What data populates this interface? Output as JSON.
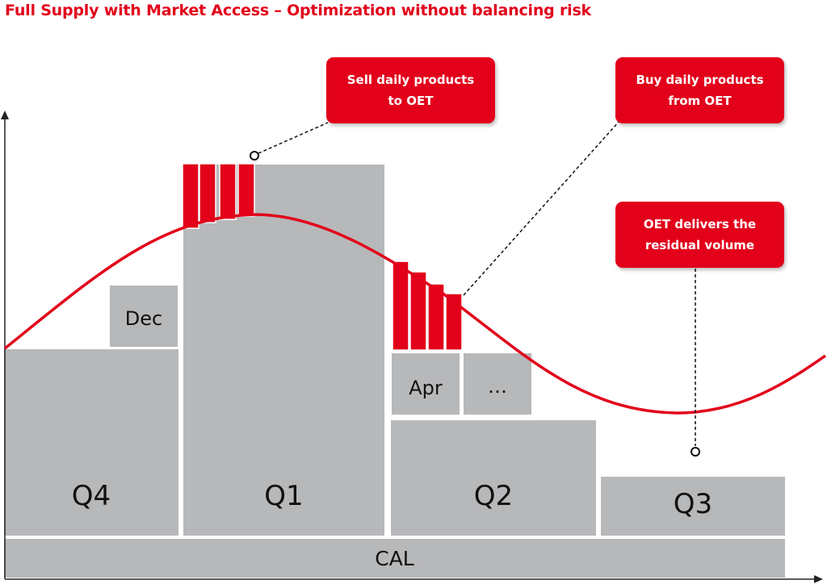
{
  "title": "Full Supply with Market Access – Optimization without balancing risk",
  "callouts": {
    "sell": {
      "line1": "Sell daily products",
      "line2": "to OET"
    },
    "buy": {
      "line1": "Buy daily products",
      "line2": "from OET"
    },
    "residual": {
      "line1": "OET delivers the",
      "line2": "residual volume"
    }
  },
  "blocks": {
    "q4": "Q4",
    "q1": "Q1",
    "q2": "Q2",
    "q3": "Q3",
    "cal": "CAL",
    "dec": "Dec",
    "apr": "Apr",
    "more": "…"
  },
  "colors": {
    "accent": "#e2001a",
    "block": "#b7b8ba",
    "axis": "#222222"
  }
}
